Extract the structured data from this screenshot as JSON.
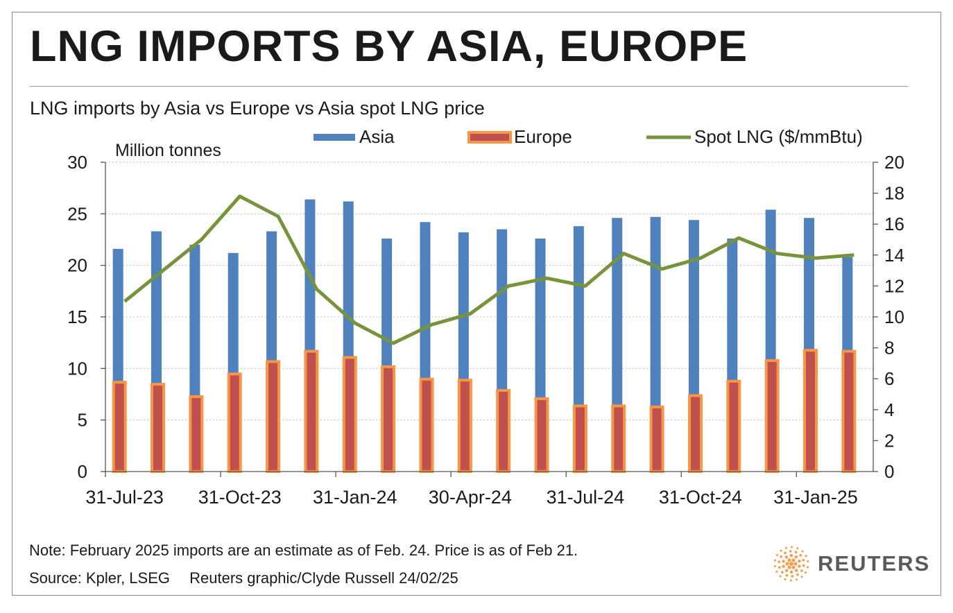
{
  "header": {
    "title": "LNG IMPORTS BY ASIA, EUROPE",
    "subtitle": "LNG imports by Asia vs Europe vs Asia spot LNG price"
  },
  "footer": {
    "note": "Note: February 2025 imports are an estimate as of Feb. 24. Price is as of Feb 21.",
    "source": "Source: Kpler, LSEG",
    "credit": "Reuters graphic/Clyde Russell 24/02/25",
    "logo_text": "REUTERS"
  },
  "colors": {
    "asia": "#4f81bd",
    "europe_fill": "#c0504d",
    "europe_border": "#f79646",
    "spot": "#77933c"
  },
  "chart_data": {
    "type": "bar",
    "title": "LNG imports by Asia vs Europe vs Asia spot LNG price",
    "ylabel": "Million tonnes",
    "ylim": [
      0,
      30
    ],
    "y_ticks": [
      "0",
      "5",
      "10",
      "15",
      "20",
      "25",
      "30"
    ],
    "y2lim": [
      0,
      20
    ],
    "y2_ticks": [
      "0",
      "2",
      "4",
      "6",
      "8",
      "10",
      "12",
      "14",
      "16",
      "18",
      "20"
    ],
    "grid": true,
    "legend_position": "top",
    "x_tick_labels": [
      "31-Jul-23",
      "31-Oct-23",
      "31-Jan-24",
      "30-Apr-24",
      "31-Jul-24",
      "31-Oct-24",
      "31-Jan-25"
    ],
    "x_tick_label_indices": [
      0,
      3,
      6,
      9,
      12,
      15,
      18
    ],
    "categories": [
      "Jul-23",
      "Aug-23",
      "Sep-23",
      "Oct-23",
      "Nov-23",
      "Dec-23",
      "Jan-24",
      "Feb-24",
      "Mar-24",
      "Apr-24",
      "May-24",
      "Jun-24",
      "Jul-24",
      "Aug-24",
      "Sep-24",
      "Oct-24",
      "Nov-24",
      "Dec-24",
      "Jan-25",
      "Feb-25"
    ],
    "series": [
      {
        "name": "Asia",
        "kind": "bar",
        "axis": "left",
        "values": [
          21.6,
          23.3,
          22.0,
          21.2,
          23.3,
          26.4,
          26.2,
          22.6,
          24.2,
          23.2,
          23.5,
          22.6,
          23.8,
          24.6,
          24.7,
          24.4,
          22.6,
          25.4,
          24.6,
          20.8
        ]
      },
      {
        "name": "Europe",
        "kind": "bar",
        "axis": "left",
        "values": [
          8.8,
          8.6,
          7.4,
          9.6,
          10.8,
          11.8,
          11.2,
          10.3,
          9.1,
          9.0,
          8.0,
          7.2,
          6.5,
          6.5,
          6.4,
          7.5,
          8.9,
          10.9,
          11.9,
          11.8
        ]
      },
      {
        "name": "Spot LNG ($/mmBtu)",
        "kind": "line",
        "axis": "right",
        "values": [
          11.0,
          13.0,
          15.0,
          17.8,
          16.5,
          11.8,
          9.6,
          8.3,
          9.5,
          10.2,
          12.0,
          12.5,
          12.0,
          14.1,
          13.1,
          13.8,
          15.1,
          14.1,
          13.8,
          14.0
        ]
      }
    ]
  }
}
